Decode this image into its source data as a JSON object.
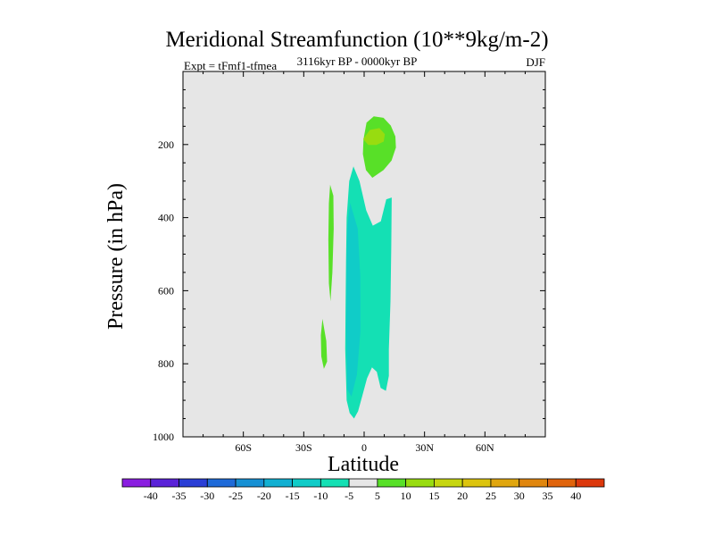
{
  "header": {
    "title": "Meridional Streamfunction (10**9kg/m-2)",
    "left_label": "Expt = tFmf1-tfmea",
    "center_label": "3116kyr BP - 0000kyr BP",
    "right_label": "DJF"
  },
  "chart_data": {
    "type": "contour",
    "title": "Meridional Streamfunction (10**9kg/m-2)",
    "xlabel": "Latitude",
    "ylabel": "Pressure (in hPa)",
    "xlim": [
      -90,
      90
    ],
    "ylim": [
      1000,
      0
    ],
    "x_ticks": [
      {
        "value": -60,
        "label": "60S"
      },
      {
        "value": -30,
        "label": "30S"
      },
      {
        "value": 0,
        "label": "0"
      },
      {
        "value": 30,
        "label": "30N"
      },
      {
        "value": 60,
        "label": "60N"
      }
    ],
    "y_ticks": [
      {
        "value": 200,
        "label": "200"
      },
      {
        "value": 400,
        "label": "400"
      },
      {
        "value": 600,
        "label": "600"
      },
      {
        "value": 800,
        "label": "800"
      },
      {
        "value": 1000,
        "label": "1000"
      }
    ],
    "background_color": "#e6e6e6",
    "colorbar": {
      "levels": [
        -40,
        -35,
        -30,
        -25,
        -20,
        -15,
        -10,
        -5,
        5,
        10,
        15,
        20,
        25,
        30,
        35,
        40
      ],
      "colors": [
        "#8a1ee0",
        "#5a22d8",
        "#2a3ed6",
        "#1e6ad8",
        "#1690d4",
        "#12b0d2",
        "#10ccc8",
        "#14e0b4",
        "#e6e6e6",
        "#58e028",
        "#98dc10",
        "#c6d610",
        "#dcc40e",
        "#e0a60e",
        "#e0860e",
        "#e0640c",
        "#dc380c"
      ]
    },
    "regions": [
      {
        "level": "5 to 10",
        "color": "#58e028",
        "points": [
          [
            -0.3,
            185
          ],
          [
            1.2,
            140
          ],
          [
            4.8,
            123
          ],
          [
            9.6,
            127
          ],
          [
            13.2,
            148
          ],
          [
            15.5,
            178
          ],
          [
            15.8,
            208
          ],
          [
            13.6,
            244
          ],
          [
            9.6,
            270
          ],
          [
            4.1,
            291
          ],
          [
            0.9,
            270
          ],
          [
            -0.6,
            226
          ]
        ]
      },
      {
        "level": "10 to 15",
        "color": "#98dc10",
        "points": [
          [
            -0.5,
            185
          ],
          [
            2.9,
            160
          ],
          [
            7.6,
            155
          ],
          [
            10.3,
            172
          ],
          [
            9.7,
            192
          ],
          [
            6.1,
            201
          ],
          [
            2.1,
            201
          ]
        ]
      },
      {
        "level": "5 to 10",
        "color": "#58e028",
        "points": [
          [
            -16.9,
            310
          ],
          [
            -15.3,
            340
          ],
          [
            -15.1,
            430
          ],
          [
            -15.8,
            550
          ],
          [
            -16.7,
            629
          ],
          [
            -17.5,
            580
          ],
          [
            -17.8,
            460
          ],
          [
            -17.5,
            360
          ]
        ]
      },
      {
        "level": "5 to 10",
        "color": "#58e028",
        "points": [
          [
            -20.7,
            677
          ],
          [
            -18.8,
            738
          ],
          [
            -18.4,
            794
          ],
          [
            -20.0,
            814
          ],
          [
            -21.3,
            780
          ],
          [
            -21.5,
            722
          ]
        ]
      },
      {
        "level": "-10 to -5",
        "color": "#14e0b4",
        "points": [
          [
            -5.3,
            260
          ],
          [
            -2.3,
            300
          ],
          [
            1.0,
            380
          ],
          [
            4.3,
            422
          ],
          [
            8.3,
            410
          ],
          [
            11.0,
            350
          ],
          [
            13.7,
            345
          ],
          [
            13.5,
            480
          ],
          [
            13.1,
            630
          ],
          [
            12.3,
            760
          ],
          [
            12.3,
            833
          ],
          [
            10.8,
            874
          ],
          [
            8.2,
            866
          ],
          [
            6.3,
            822
          ],
          [
            3.9,
            810
          ],
          [
            1.4,
            840
          ],
          [
            -1.0,
            890
          ],
          [
            -3.0,
            930
          ],
          [
            -5.0,
            950
          ],
          [
            -7.2,
            935
          ],
          [
            -8.7,
            900
          ],
          [
            -9.4,
            760
          ],
          [
            -9.2,
            640
          ],
          [
            -9.0,
            520
          ],
          [
            -8.7,
            400
          ],
          [
            -7.4,
            300
          ]
        ]
      },
      {
        "level": "-15 to -10",
        "color": "#10ccc8",
        "points": [
          [
            -6.9,
            360
          ],
          [
            -3.2,
            430
          ],
          [
            -1.9,
            560
          ],
          [
            -1.8,
            710
          ],
          [
            -3.6,
            830
          ],
          [
            -6.3,
            890
          ],
          [
            -8.4,
            870
          ],
          [
            -8.9,
            700
          ],
          [
            -8.7,
            520
          ],
          [
            -8.3,
            420
          ]
        ]
      }
    ]
  }
}
